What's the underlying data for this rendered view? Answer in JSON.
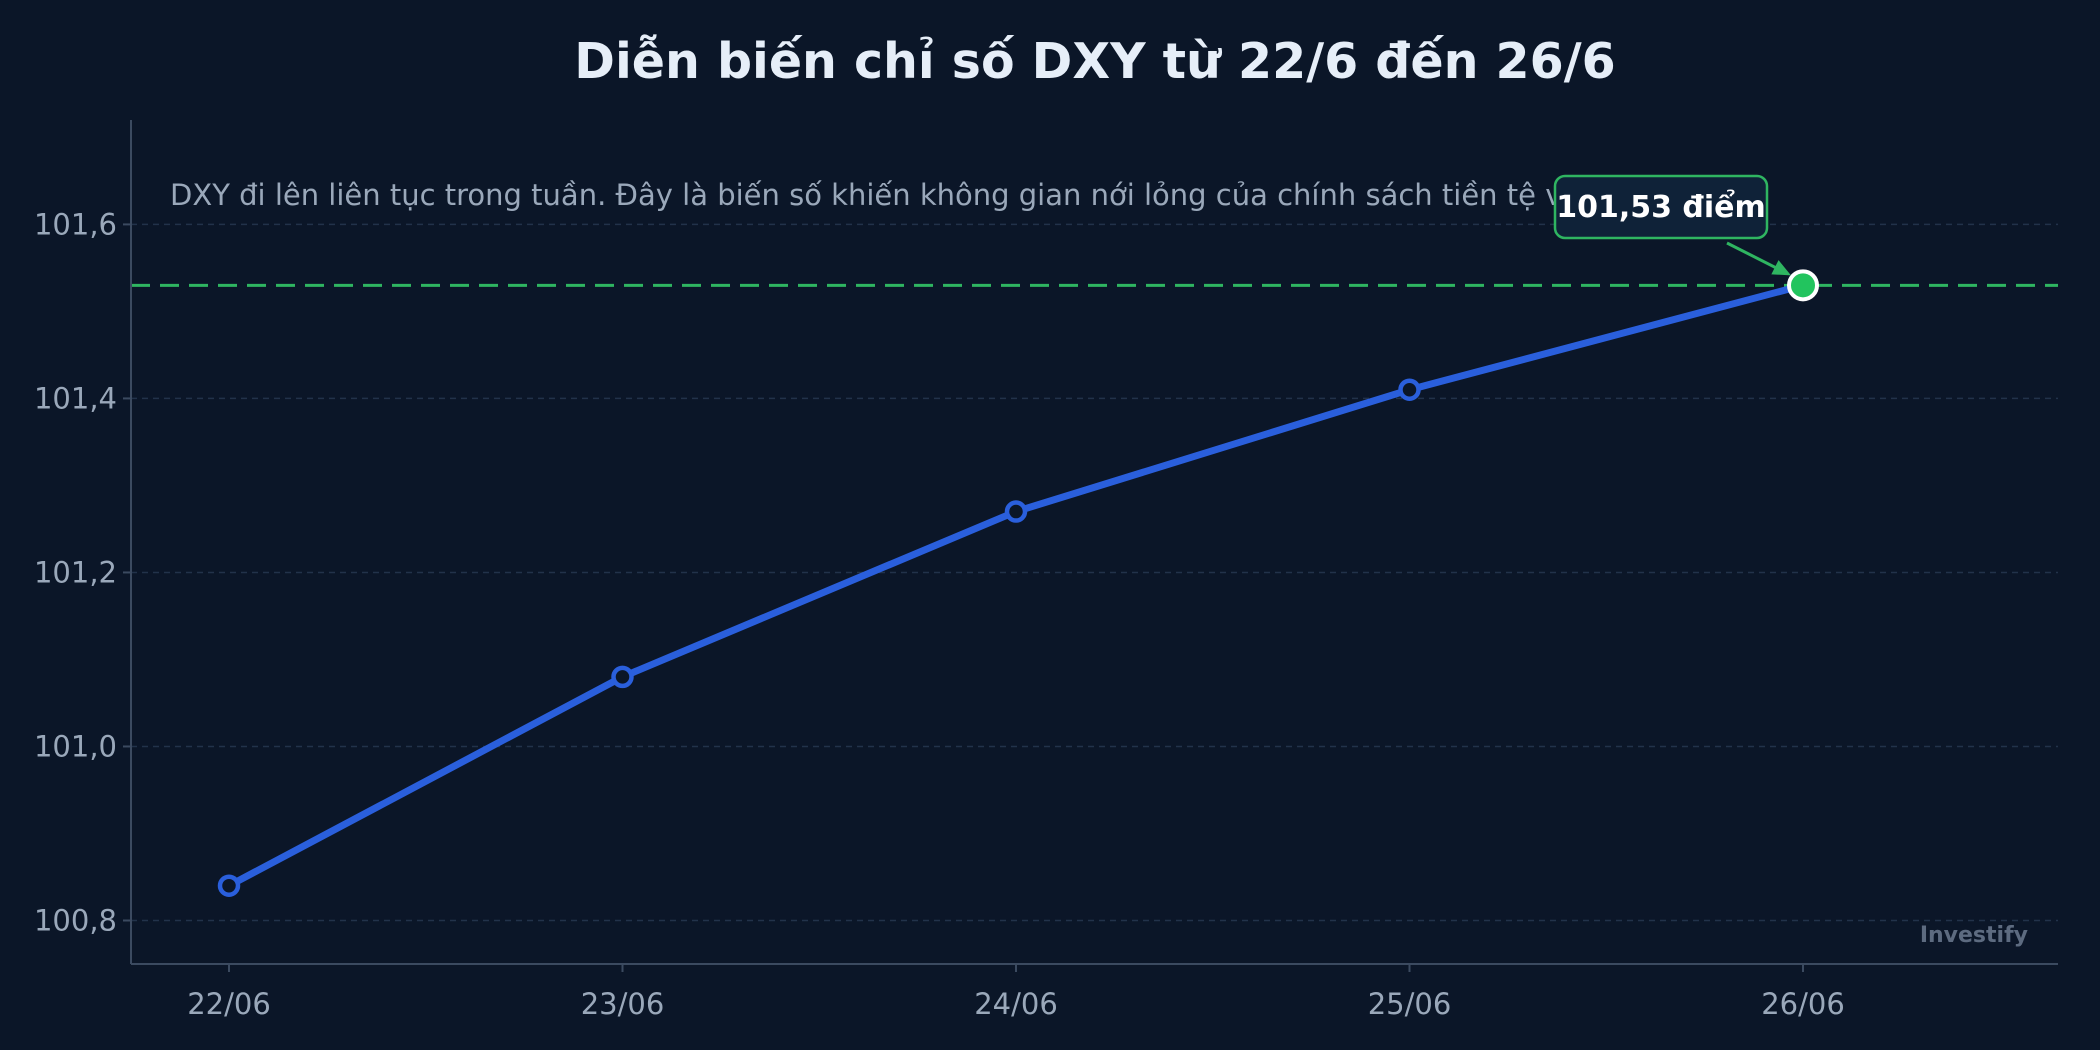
{
  "chart_data": {
    "type": "line",
    "title": "Diễn biến chỉ số DXY từ 22/6 đến 26/6",
    "subtitle": "DXY đi lên liên tục trong tuần. Đây là biến số khiến không gian nới lỏng của chính sách tiền tệ vẫn bị g",
    "categories": [
      "22/06",
      "23/06",
      "24/06",
      "25/06",
      "26/06"
    ],
    "values": [
      100.84,
      101.08,
      101.27,
      101.41,
      101.53
    ],
    "yticks": [
      100.8,
      101.0,
      101.2,
      101.4,
      101.6
    ],
    "ytick_labels": [
      "100,8",
      "101,0",
      "101,2",
      "101,4",
      "101,6"
    ],
    "ylim": [
      100.75,
      101.72
    ],
    "grid": true,
    "highlight": {
      "category": "26/06",
      "value": 101.53,
      "label": "101,53 điểm"
    },
    "reference_line": {
      "value": 101.53
    },
    "watermark": "Investify",
    "colors": {
      "background": "#0b1628",
      "line": "#2a5fdc",
      "highlight": "#22c45e",
      "reference": "#2fb561",
      "title": "#e6eef8",
      "text": "#9aa8ba"
    }
  }
}
